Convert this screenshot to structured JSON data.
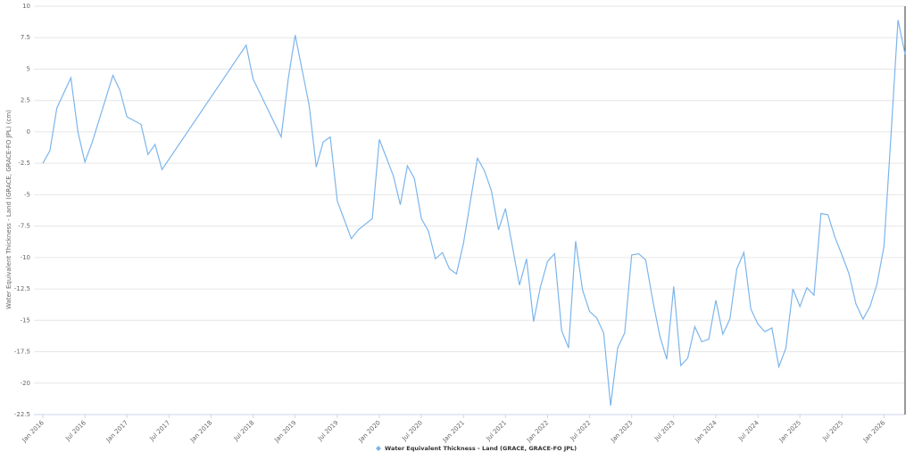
{
  "chart_data": {
    "type": "line",
    "y_label": "Water Equivalent Thickness - Land (GRACE, GRACE-FO JPL) (cm)",
    "x": [
      "2016-01",
      "2016-02",
      "2016-03",
      "2016-05",
      "2016-06",
      "2016-07",
      "2016-08",
      "2016-11",
      "2016-12",
      "2017-01",
      "2017-03",
      "2017-04",
      "2017-05",
      "2017-06",
      "2018-06",
      "2018-07",
      "2018-11",
      "2018-12",
      "2019-01",
      "2019-03",
      "2019-04",
      "2019-05",
      "2019-06",
      "2019-07",
      "2019-09",
      "2019-10",
      "2019-12",
      "2020-01",
      "2020-03",
      "2020-04",
      "2020-05",
      "2020-06",
      "2020-07",
      "2020-08",
      "2020-09",
      "2020-10",
      "2020-11",
      "2020-12",
      "2021-01",
      "2021-03",
      "2021-04",
      "2021-05",
      "2021-06",
      "2021-07",
      "2021-09",
      "2021-10",
      "2021-11",
      "2021-12",
      "2022-01",
      "2022-02",
      "2022-03",
      "2022-04",
      "2022-05",
      "2022-06",
      "2022-07",
      "2022-08",
      "2022-09",
      "2022-10",
      "2022-11",
      "2022-12",
      "2023-01",
      "2023-02",
      "2023-03",
      "2023-04",
      "2023-05",
      "2023-06",
      "2023-07",
      "2023-08",
      "2023-09",
      "2023-10",
      "2023-11",
      "2023-12",
      "2024-01",
      "2024-02",
      "2024-03",
      "2024-04",
      "2024-05",
      "2024-06",
      "2024-07",
      "2024-08",
      "2024-09",
      "2024-10",
      "2024-11",
      "2024-12",
      "2025-01",
      "2025-02",
      "2025-03",
      "2025-04",
      "2025-05",
      "2025-06",
      "2025-07",
      "2025-08",
      "2025-09",
      "2025-10",
      "2025-11",
      "2025-12",
      "2026-01",
      "2026-02",
      "2026-03",
      "2026-04"
    ],
    "series": [
      {
        "name": "Water Equivalent Thickness - Land (GRACE, GRACE-FO JPL)",
        "color": "#7cb5ec",
        "values": [
          -2.5,
          -1.5,
          1.9,
          4.3,
          0,
          -2.4,
          -0.9,
          4.5,
          3.3,
          1.2,
          0.6,
          -1.8,
          -1.0,
          -3.0,
          6.9,
          4.2,
          -0.4,
          4.2,
          7.7,
          2.1,
          -2.8,
          -0.8,
          -0.4,
          -5.5,
          -8.5,
          -7.8,
          -6.9,
          -0.6,
          -3.5,
          -5.8,
          -2.7,
          -3.7,
          -6.9,
          -7.9,
          -10.1,
          -9.6,
          -10.9,
          -11.3,
          -8.9,
          -2.1,
          -3.1,
          -4.7,
          -7.8,
          -6.1,
          -12.2,
          -10.1,
          -15.1,
          -12.3,
          -10.3,
          -9.7,
          -15.8,
          -17.2,
          -8.7,
          -12.6,
          -14.3,
          -14.8,
          -16.0,
          -21.8,
          -17.2,
          -16.0,
          -9.8,
          -9.7,
          -10.2,
          -13.4,
          -16.2,
          -18.1,
          -12.3,
          -18.6,
          -18.0,
          -15.5,
          -16.7,
          -16.5,
          -13.4,
          -16.1,
          -14.9,
          -10.9,
          -9.6,
          -14.1,
          -15.3,
          -15.9,
          -15.6,
          -18.7,
          -17.2,
          -12.5,
          -13.9,
          -12.4,
          -13.0,
          -6.5,
          -6.6,
          -8.4,
          -9.8,
          -11.3,
          -13.7,
          -14.9,
          -13.9,
          -12.1,
          -9.1,
          -0.2,
          8.9,
          6.2
        ]
      }
    ],
    "xlim": [
      "2016-01",
      "2026-04"
    ],
    "xticks": [
      {
        "value": "2016-01",
        "label": "Jan 2016"
      },
      {
        "value": "2016-07",
        "label": "Jul 2016"
      },
      {
        "value": "2017-01",
        "label": "Jan 2017"
      },
      {
        "value": "2017-07",
        "label": "Jul 2017"
      },
      {
        "value": "2018-01",
        "label": "Jan 2018"
      },
      {
        "value": "2018-07",
        "label": "Jul 2018"
      },
      {
        "value": "2019-01",
        "label": "Jan 2019"
      },
      {
        "value": "2019-07",
        "label": "Jul 2019"
      },
      {
        "value": "2020-01",
        "label": "Jan 2020"
      },
      {
        "value": "2020-07",
        "label": "Jul 2020"
      },
      {
        "value": "2021-01",
        "label": "Jan 2021"
      },
      {
        "value": "2021-07",
        "label": "Jul 2021"
      },
      {
        "value": "2022-01",
        "label": "Jan 2022"
      },
      {
        "value": "2022-07",
        "label": "Jul 2022"
      },
      {
        "value": "2023-01",
        "label": "Jan 2023"
      },
      {
        "value": "2023-07",
        "label": "Jul 2023"
      },
      {
        "value": "2024-01",
        "label": "Jan 2024"
      },
      {
        "value": "2024-07",
        "label": "Jul 2024"
      },
      {
        "value": "2025-01",
        "label": "Jan 2025"
      },
      {
        "value": "2025-07",
        "label": "Jul 2025"
      },
      {
        "value": "2026-01",
        "label": "Jan 2026"
      }
    ],
    "ylim": [
      -22.5,
      10
    ],
    "yticks": [
      -22.5,
      -20,
      -17.5,
      -15,
      -12.5,
      -10,
      -7.5,
      -5,
      -2.5,
      0,
      2.5,
      5,
      7.5,
      10
    ],
    "grid": true,
    "legend": "bottom"
  }
}
